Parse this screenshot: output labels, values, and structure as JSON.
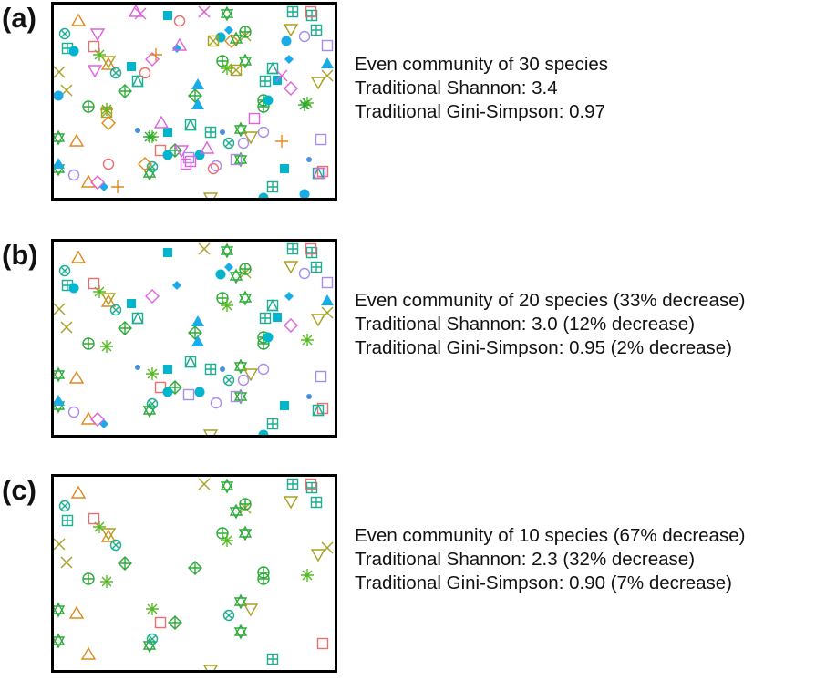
{
  "panels": [
    {
      "label": "(a)",
      "species_count": 30,
      "stats": [
        "Even community of 30 species",
        "Traditional Shannon: 3.4",
        "Traditional Gini-Simpson: 0.97"
      ]
    },
    {
      "label": "(b)",
      "species_count": 20,
      "stats": [
        "Even community of 20 species (33% decrease)",
        "Traditional Shannon: 3.0 (12% decrease)",
        "Traditional Gini-Simpson: 0.95 (2% decrease)"
      ]
    },
    {
      "label": "(c)",
      "species_count": 10,
      "stats": [
        "Even community of 10 species (67% decrease)",
        "Traditional Shannon: 2.3 (32% decrease)",
        "Traditional Gini-Simpson: 0.90 (7% decrease)"
      ]
    }
  ],
  "colors": {
    "orange": "#E08A1E",
    "salmon": "#EE6E6E",
    "olive": "#A8A020",
    "green": "#2EAA3A",
    "lime": "#55BB22",
    "teal": "#1AAE92",
    "cyan": "#00B5CC",
    "sky": "#1AACE8",
    "blue": "#4A90E2",
    "violet": "#A98BF0",
    "magenta": "#E060E0",
    "frame": "#000000"
  }
}
